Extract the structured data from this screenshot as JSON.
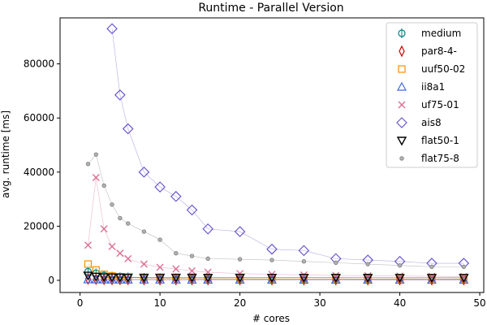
{
  "chart_data": {
    "type": "line",
    "title": "Runtime - Parallel Version",
    "xlabel": "# cores",
    "ylabel": "avg. runtime [ms]",
    "xlim": [
      -2.5,
      50.5
    ],
    "ylim": [
      -4500,
      97000
    ],
    "xticks": [
      0,
      10,
      20,
      30,
      40,
      50
    ],
    "yticks": [
      0,
      20000,
      40000,
      60000,
      80000
    ],
    "grid": false,
    "legend_position": "top-right",
    "x": [
      1,
      2,
      3,
      4,
      5,
      6,
      8,
      10,
      12,
      14,
      16,
      20,
      24,
      28,
      32,
      36,
      40,
      44,
      48
    ],
    "series": [
      {
        "name": "medium",
        "color": "#008080",
        "marker": "circle-errorbar",
        "values": [
          3200,
          2600,
          1800,
          1400,
          1200,
          1100,
          900,
          800,
          700,
          650,
          600,
          550,
          500,
          480,
          460,
          440,
          430,
          420,
          410
        ]
      },
      {
        "name": "par8-4-",
        "color": "#cc0000",
        "marker": "thin-diamond",
        "values": [
          500,
          420,
          380,
          350,
          330,
          320,
          310,
          300,
          295,
          290,
          285,
          280,
          275,
          270,
          265,
          260,
          258,
          255,
          252
        ]
      },
      {
        "name": "uuf50-02",
        "color": "#ff8c00",
        "marker": "square",
        "values": [
          6000,
          3800,
          2200,
          1600,
          1300,
          1100,
          900,
          800,
          750,
          700,
          680,
          650,
          630,
          610,
          600,
          590,
          580,
          570,
          560
        ]
      },
      {
        "name": "ii8a1",
        "color": "#4169e1",
        "marker": "triangle-up",
        "values": [
          300,
          260,
          230,
          210,
          200,
          190,
          180,
          175,
          170,
          165,
          160,
          155,
          150,
          148,
          146,
          144,
          142,
          140,
          138
        ]
      },
      {
        "name": "uf75-01",
        "color": "#db7093",
        "marker": "x",
        "values": [
          13000,
          38000,
          19000,
          12500,
          10000,
          8000,
          6000,
          4800,
          4200,
          3500,
          3000,
          2500,
          2200,
          2000,
          1800,
          1700,
          1600,
          1500,
          1400
        ]
      },
      {
        "name": "ais8",
        "color": "#6a5acd",
        "marker": "diamond",
        "values": [
          null,
          null,
          null,
          93000,
          68500,
          56000,
          40000,
          34500,
          31000,
          26000,
          19000,
          18000,
          11500,
          11000,
          8000,
          7500,
          7000,
          6300,
          6300
        ]
      },
      {
        "name": "flat50-1",
        "color": "#000000",
        "marker": "triangle-down",
        "values": [
          1800,
          1400,
          1200,
          1150,
          1100,
          1080,
          1050,
          1040,
          1030,
          1020,
          1010,
          1000,
          995,
          990,
          985,
          980,
          975,
          970,
          965
        ]
      },
      {
        "name": "flat75-8",
        "color": "#808080",
        "marker": "small-circle",
        "values": [
          43000,
          46500,
          35000,
          28000,
          23000,
          21000,
          18000,
          15000,
          10000,
          9000,
          8000,
          7800,
          7500,
          7000,
          6500,
          6000,
          5500,
          5000,
          5000
        ]
      }
    ]
  }
}
